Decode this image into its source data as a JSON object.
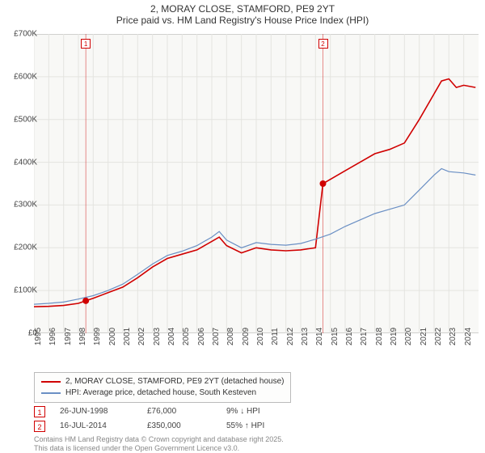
{
  "title": {
    "line1": "2, MORAY CLOSE, STAMFORD, PE9 2YT",
    "line2": "Price paid vs. HM Land Registry's House Price Index (HPI)"
  },
  "chart": {
    "type": "line",
    "background_color": "#f8f8f6",
    "grid_color": "#e4e4e0",
    "xlim": [
      1995,
      2025
    ],
    "ylim": [
      0,
      700000
    ],
    "ytick_step": 100000,
    "yticks": [
      "£0",
      "£100K",
      "£200K",
      "£300K",
      "£400K",
      "£500K",
      "£600K",
      "£700K"
    ],
    "xticks": [
      "1995",
      "1996",
      "1997",
      "1998",
      "1999",
      "2000",
      "2001",
      "2002",
      "2003",
      "2004",
      "2005",
      "2006",
      "2007",
      "2008",
      "2009",
      "2010",
      "2011",
      "2012",
      "2013",
      "2014",
      "2015",
      "2016",
      "2017",
      "2018",
      "2019",
      "2020",
      "2021",
      "2022",
      "2023",
      "2024"
    ],
    "series": [
      {
        "name": "property",
        "label": "2, MORAY CLOSE, STAMFORD, PE9 2YT (detached house)",
        "color": "#d00000",
        "line_width": 1.6,
        "points": [
          [
            1995,
            62000
          ],
          [
            1996,
            63000
          ],
          [
            1997,
            65000
          ],
          [
            1998,
            70000
          ],
          [
            1998.5,
            76000
          ],
          [
            1999,
            82000
          ],
          [
            2000,
            95000
          ],
          [
            2001,
            108000
          ],
          [
            2002,
            130000
          ],
          [
            2003,
            155000
          ],
          [
            2004,
            175000
          ],
          [
            2005,
            185000
          ],
          [
            2006,
            195000
          ],
          [
            2007,
            215000
          ],
          [
            2007.5,
            225000
          ],
          [
            2008,
            205000
          ],
          [
            2009,
            188000
          ],
          [
            2010,
            200000
          ],
          [
            2011,
            195000
          ],
          [
            2012,
            193000
          ],
          [
            2013,
            195000
          ],
          [
            2014,
            200000
          ],
          [
            2014.5,
            350000
          ],
          [
            2015,
            360000
          ],
          [
            2016,
            380000
          ],
          [
            2017,
            400000
          ],
          [
            2018,
            420000
          ],
          [
            2019,
            430000
          ],
          [
            2020,
            445000
          ],
          [
            2021,
            500000
          ],
          [
            2022,
            560000
          ],
          [
            2022.5,
            590000
          ],
          [
            2023,
            595000
          ],
          [
            2023.5,
            575000
          ],
          [
            2024,
            580000
          ],
          [
            2024.8,
            575000
          ]
        ]
      },
      {
        "name": "hpi",
        "label": "HPI: Average price, detached house, South Kesteven",
        "color": "#6a8fc4",
        "line_width": 1.2,
        "points": [
          [
            1995,
            68000
          ],
          [
            1996,
            70000
          ],
          [
            1997,
            73000
          ],
          [
            1998,
            80000
          ],
          [
            1999,
            88000
          ],
          [
            2000,
            100000
          ],
          [
            2001,
            115000
          ],
          [
            2002,
            138000
          ],
          [
            2003,
            162000
          ],
          [
            2004,
            182000
          ],
          [
            2005,
            192000
          ],
          [
            2006,
            205000
          ],
          [
            2007,
            225000
          ],
          [
            2007.5,
            238000
          ],
          [
            2008,
            218000
          ],
          [
            2009,
            200000
          ],
          [
            2010,
            212000
          ],
          [
            2011,
            208000
          ],
          [
            2012,
            206000
          ],
          [
            2013,
            210000
          ],
          [
            2014,
            220000
          ],
          [
            2015,
            232000
          ],
          [
            2016,
            250000
          ],
          [
            2017,
            265000
          ],
          [
            2018,
            280000
          ],
          [
            2019,
            290000
          ],
          [
            2020,
            300000
          ],
          [
            2021,
            335000
          ],
          [
            2022,
            370000
          ],
          [
            2022.5,
            385000
          ],
          [
            2023,
            378000
          ],
          [
            2024,
            375000
          ],
          [
            2024.8,
            370000
          ]
        ]
      }
    ],
    "sale_markers": [
      {
        "num": "1",
        "x": 1998.5,
        "y": 76000,
        "color": "#d00000"
      },
      {
        "num": "2",
        "x": 2014.5,
        "y": 350000,
        "color": "#d00000"
      }
    ]
  },
  "legend": {
    "items": [
      {
        "color": "#d00000",
        "label": "2, MORAY CLOSE, STAMFORD, PE9 2YT (detached house)"
      },
      {
        "color": "#6a8fc4",
        "label": "HPI: Average price, detached house, South Kesteven"
      }
    ]
  },
  "sales": [
    {
      "num": "1",
      "date": "26-JUN-1998",
      "price": "£76,000",
      "delta": "9% ↓ HPI",
      "border": "#d00000"
    },
    {
      "num": "2",
      "date": "16-JUL-2014",
      "price": "£350,000",
      "delta": "55% ↑ HPI",
      "border": "#d00000"
    }
  ],
  "attribution": {
    "line1": "Contains HM Land Registry data © Crown copyright and database right 2025.",
    "line2": "This data is licensed under the Open Government Licence v3.0."
  }
}
